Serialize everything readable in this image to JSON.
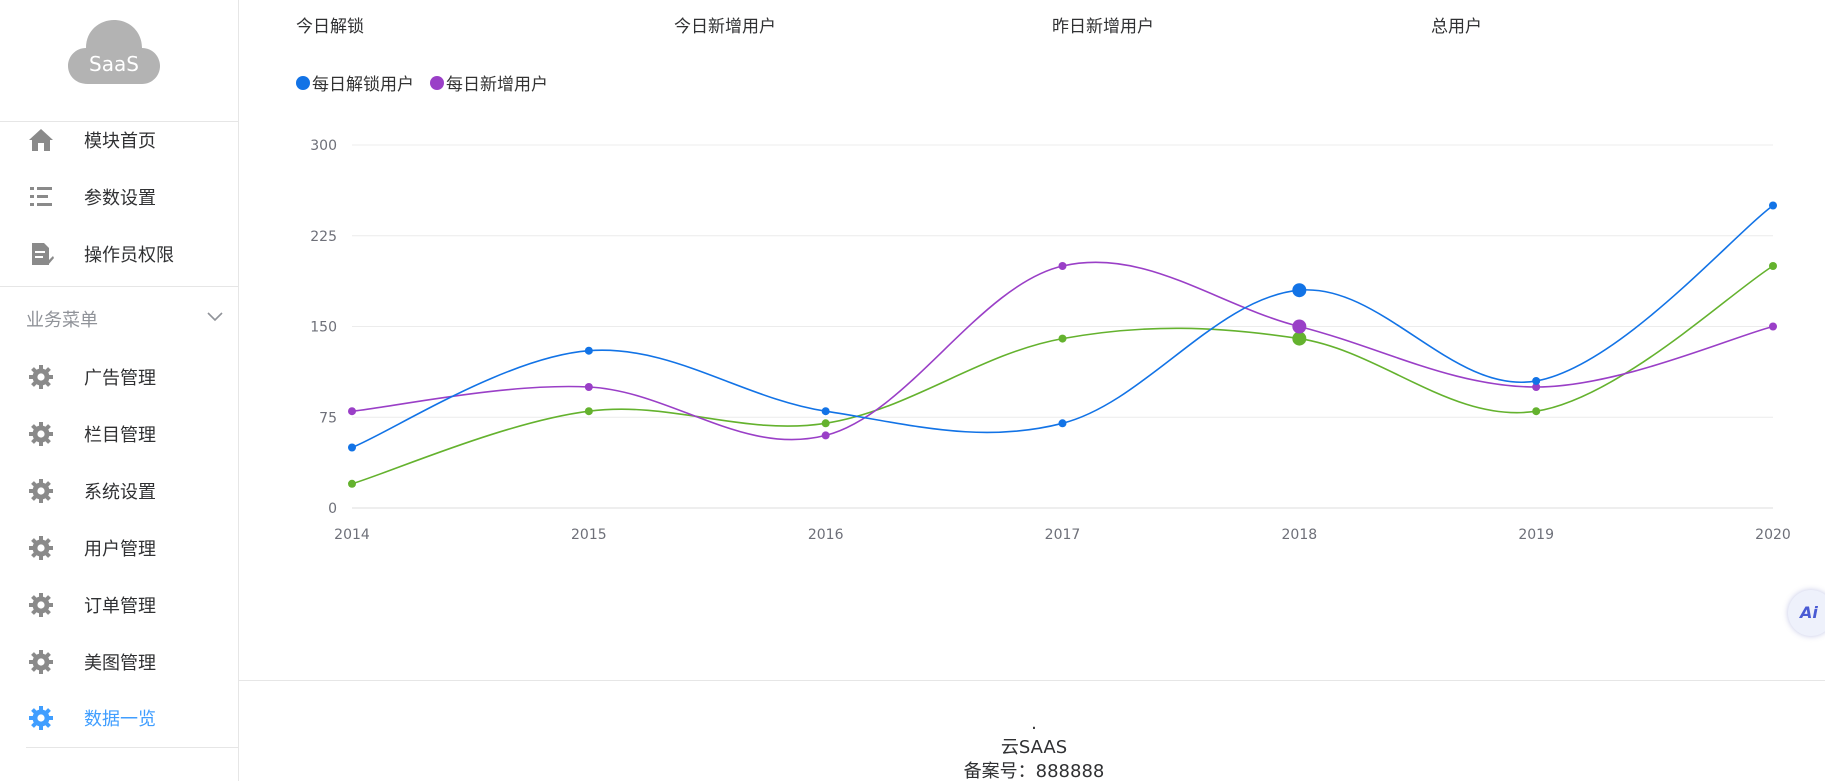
{
  "brand": {
    "logo_text": "SaaS"
  },
  "sidebar": {
    "top_items": [
      {
        "label": "模块首页",
        "icon": "home-icon"
      },
      {
        "label": "参数设置",
        "icon": "list-settings-icon"
      },
      {
        "label": "操作员权限",
        "icon": "document-edit-icon"
      }
    ],
    "group_title": "业务菜单",
    "group_items": [
      {
        "label": "广告管理",
        "icon": "gear-icon"
      },
      {
        "label": "栏目管理",
        "icon": "gear-icon"
      },
      {
        "label": "系统设置",
        "icon": "gear-icon"
      },
      {
        "label": "用户管理",
        "icon": "gear-icon"
      },
      {
        "label": "订单管理",
        "icon": "gear-icon"
      },
      {
        "label": "美图管理",
        "icon": "gear-icon"
      },
      {
        "label": "数据一览",
        "icon": "gear-icon",
        "active": true
      }
    ]
  },
  "stats": {
    "today_unlock": "今日解锁",
    "today_new_users": "今日新增用户",
    "yesterday_new_users": "昨日新增用户",
    "total_users": "总用户"
  },
  "legend": [
    {
      "label": "每日解锁用户",
      "color": "#1273e6"
    },
    {
      "label": "每日新增用户",
      "color": "#9a3fc7"
    }
  ],
  "chart_data": {
    "type": "line",
    "categories": [
      "2014",
      "2015",
      "2016",
      "2017",
      "2018",
      "2019",
      "2020"
    ],
    "series": [
      {
        "name": "每日解锁用户",
        "color": "#1273e6",
        "values": [
          50,
          130,
          80,
          70,
          180,
          105,
          250
        ]
      },
      {
        "name": "每日新增用户",
        "color": "#9a3fc7",
        "values": [
          80,
          100,
          60,
          200,
          150,
          100,
          150
        ]
      },
      {
        "color": "#64b22e",
        "values": [
          20,
          80,
          70,
          140,
          140,
          80,
          200
        ]
      }
    ],
    "y_ticks": [
      "0",
      "75",
      "150",
      "225",
      "300"
    ],
    "ylim": [
      0,
      300
    ],
    "grid": true,
    "smooth": true
  },
  "footer": {
    "dot": ".",
    "site_name": "云SAAS",
    "record": "备案号：888888"
  },
  "ai_button": {
    "label": "Ai"
  },
  "colors": {
    "accent": "#409eff",
    "muted": "#909399",
    "gear": "#8a8a8a"
  }
}
